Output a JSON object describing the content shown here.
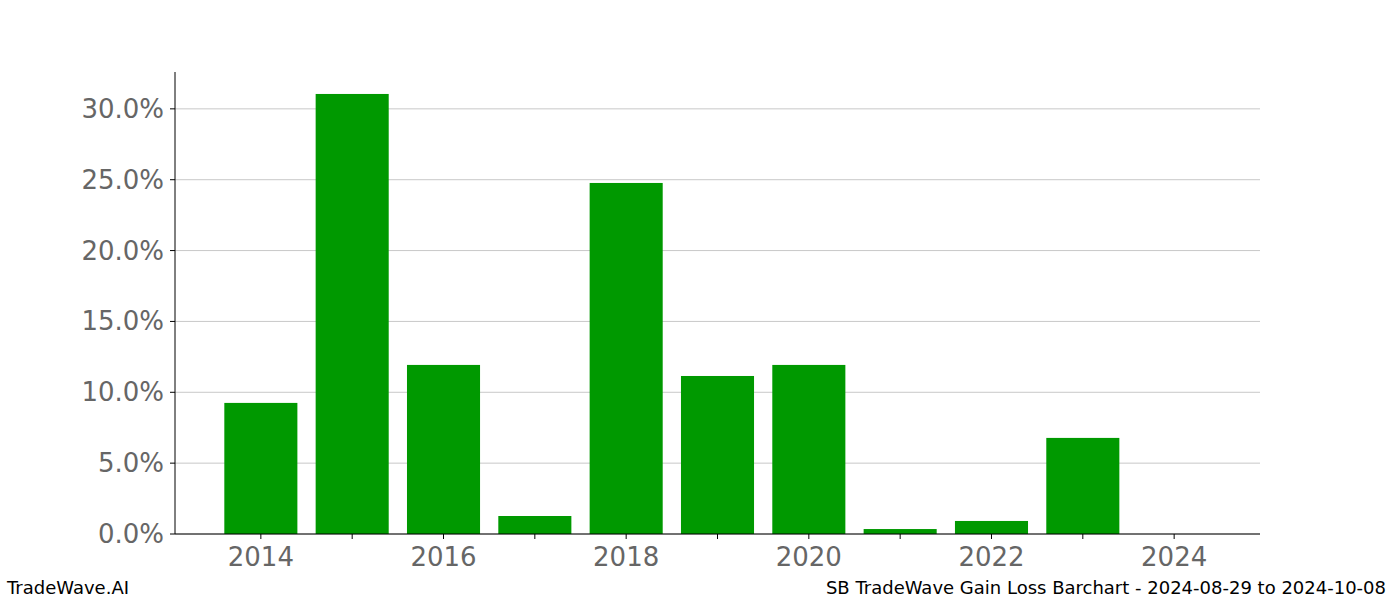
{
  "chart_data": {
    "type": "bar",
    "title": "SB TradeWave Gain Loss Barchart - 2024-08-29 to 2024-10-08",
    "annotations": [
      "TradeWave.AI"
    ],
    "categories": [
      "2014",
      null,
      "2016",
      null,
      "2018",
      null,
      "2020",
      null,
      "2022",
      null,
      "2024"
    ],
    "values": [
      9.25,
      31.05,
      11.93,
      1.27,
      24.77,
      11.15,
      11.93,
      0.35,
      0.92,
      6.78,
      0
    ],
    "color": "#009900",
    "ylim": [
      0,
      32.6
    ],
    "yticks": [
      {
        "value": 0,
        "label": "0.0%"
      },
      {
        "value": 5,
        "label": "5.0%"
      },
      {
        "value": 10,
        "label": "10.0%"
      },
      {
        "value": 15,
        "label": "15.0%"
      },
      {
        "value": 20,
        "label": "20.0%"
      },
      {
        "value": 25,
        "label": "25.0%"
      },
      {
        "value": 30,
        "label": "30.0%"
      }
    ],
    "grid": true
  }
}
